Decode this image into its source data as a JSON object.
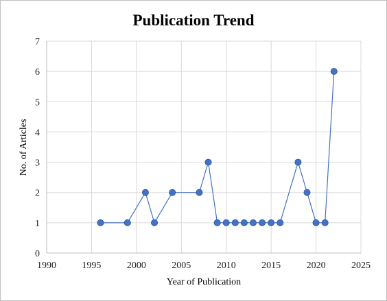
{
  "chart_data": {
    "type": "scatter",
    "title": "Publication Trend",
    "xlabel": "Year of Publication",
    "ylabel": "No. of Articles",
    "xlim": [
      1990,
      2025
    ],
    "ylim": [
      0,
      7
    ],
    "xticks": [
      1990,
      1995,
      2000,
      2005,
      2010,
      2015,
      2020,
      2025
    ],
    "yticks": [
      0,
      1,
      2,
      3,
      4,
      5,
      6,
      7
    ],
    "grid": true,
    "legend": "none",
    "line_connected": true,
    "colors": {
      "series": "#4472c4",
      "marker_edge": "#2f5597",
      "grid": "#d9d9d9"
    },
    "series": [
      {
        "x": [
          1996,
          1999,
          2001,
          2002,
          2004,
          2007,
          2008,
          2009,
          2010,
          2011,
          2012,
          2013,
          2014,
          2015,
          2016,
          2018,
          2019,
          2020,
          2021,
          2022
        ],
        "y": [
          1,
          1,
          2,
          1,
          2,
          2,
          3,
          1,
          1,
          1,
          1,
          1,
          1,
          1,
          1,
          3,
          2,
          1,
          1,
          6
        ]
      }
    ]
  }
}
